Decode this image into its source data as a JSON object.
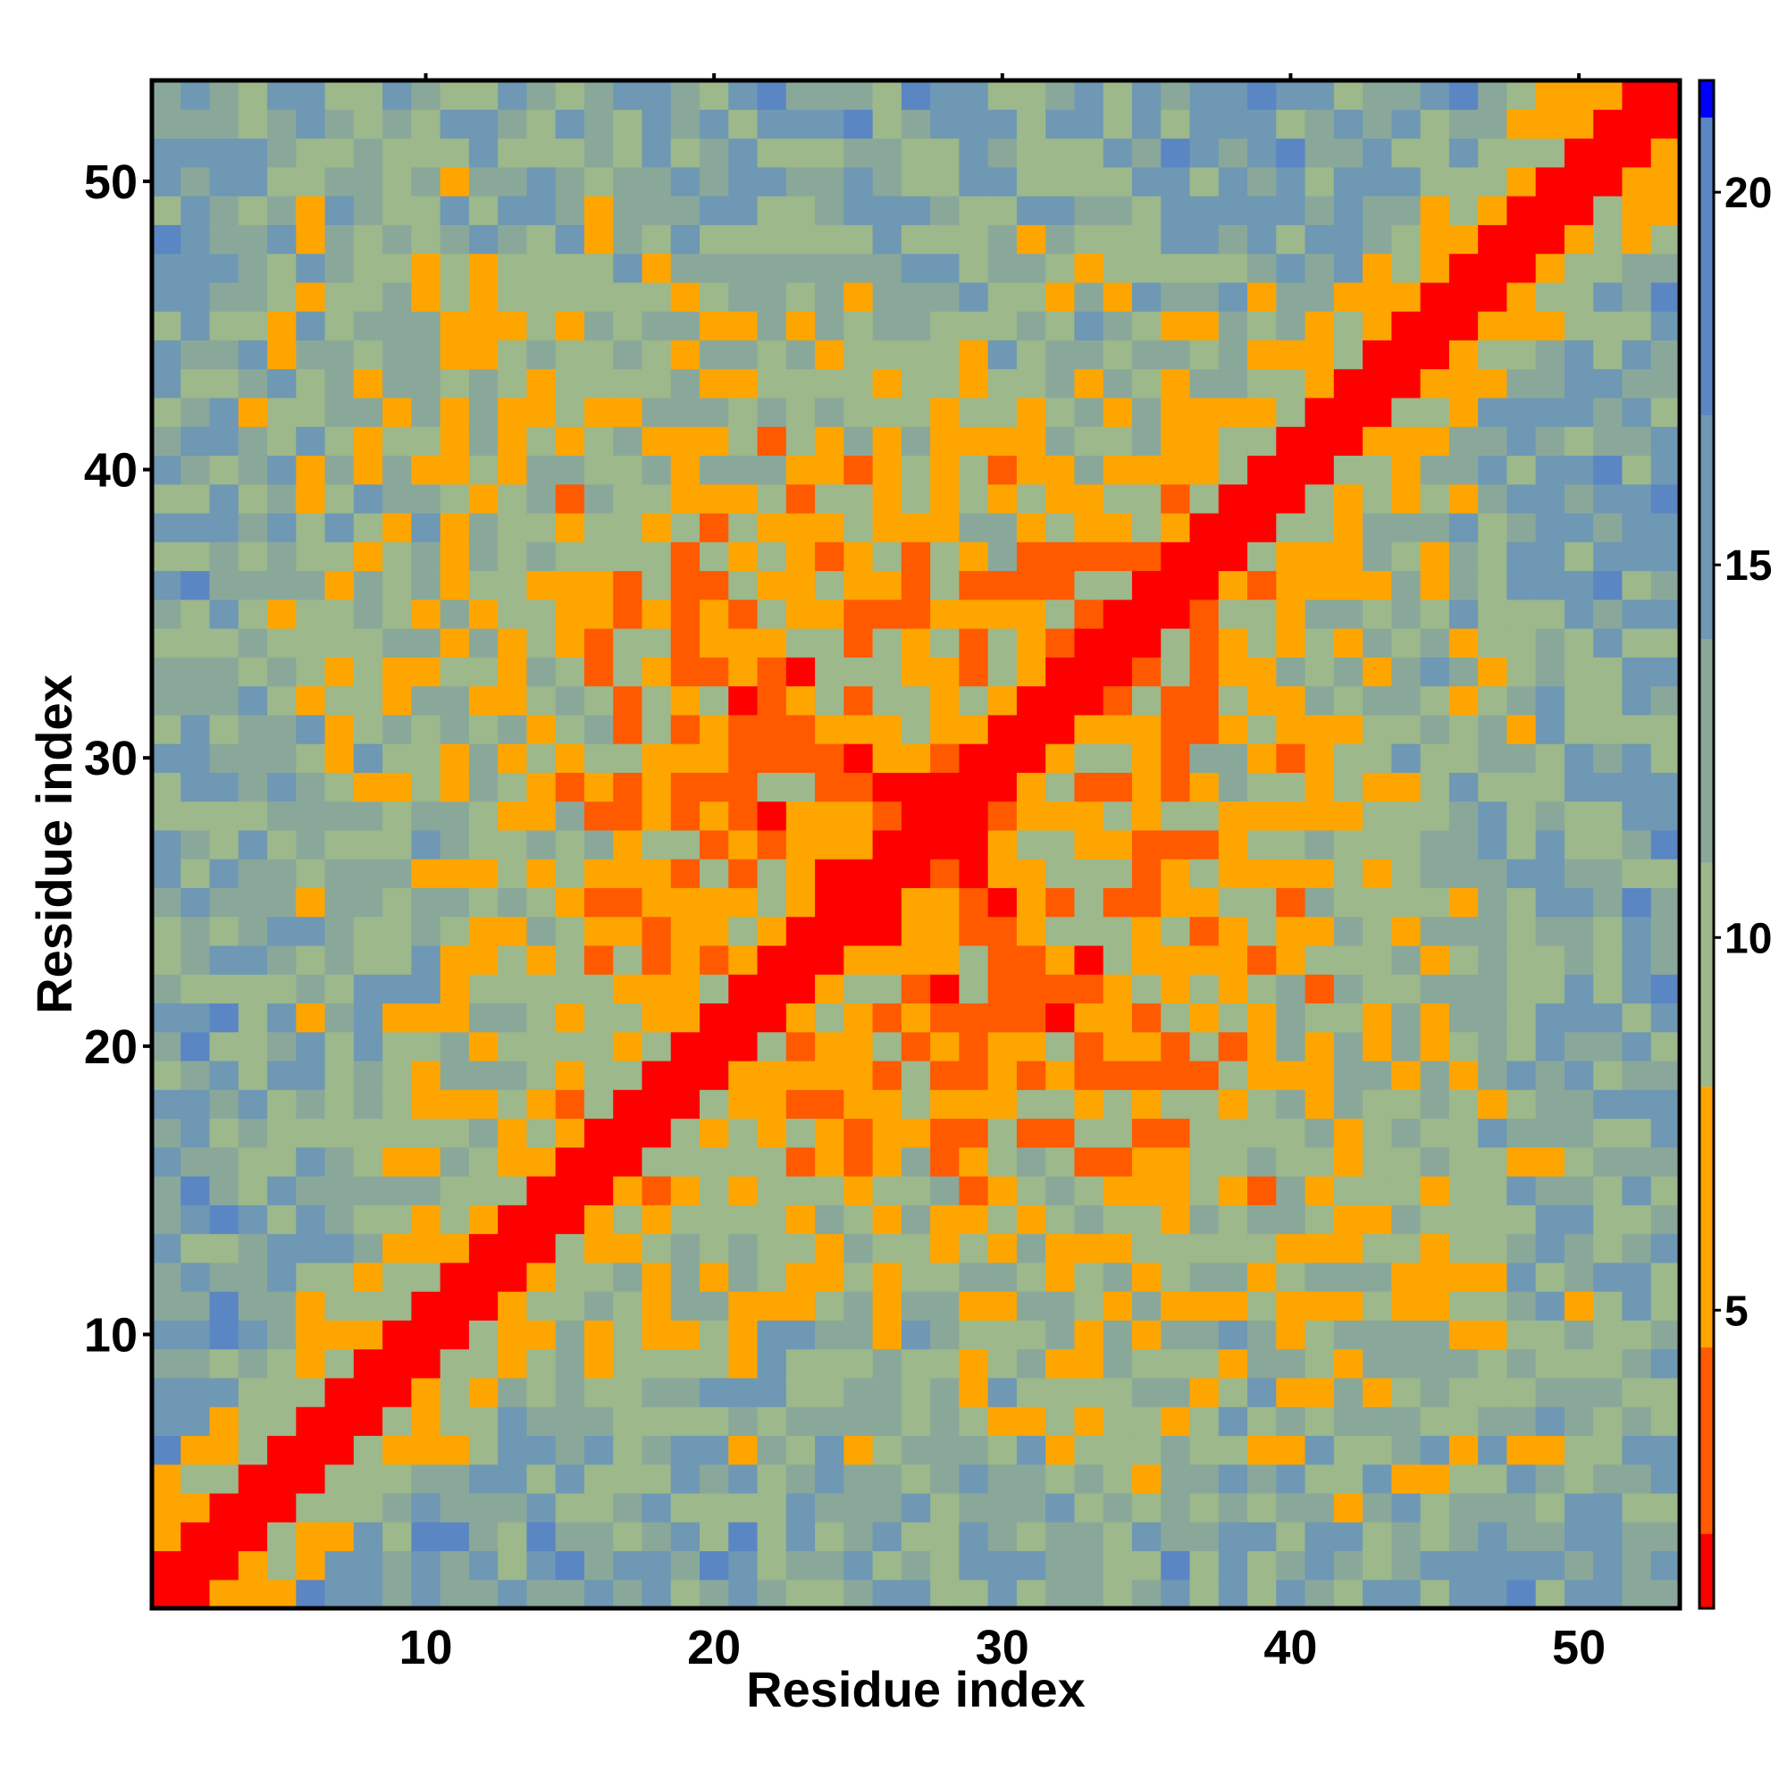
{
  "chart_data": {
    "type": "heatmap",
    "title": "",
    "xlabel": "Residue index",
    "ylabel": "Residue index",
    "n_residues": 53,
    "xlim": [
      1,
      53
    ],
    "ylim": [
      1,
      53
    ],
    "x_ticks": [
      10,
      20,
      30,
      40,
      50
    ],
    "y_ticks": [
      10,
      20,
      30,
      40,
      50
    ],
    "colorbar": {
      "range": [
        1,
        21.5
      ],
      "ticks": [
        5,
        10,
        15,
        20
      ],
      "colors": [
        {
          "max": 2.0,
          "color": "#ff0000"
        },
        {
          "max": 4.5,
          "color": "#ff5a00"
        },
        {
          "max": 8.0,
          "color": "#ffa500"
        },
        {
          "max": 11.0,
          "color": "#9db88a"
        },
        {
          "max": 14.0,
          "color": "#8aa89a"
        },
        {
          "max": 17.0,
          "color": "#6e98b4"
        },
        {
          "max": 21.0,
          "color": "#5b86c4"
        },
        {
          "max": 1000,
          "color": "#0000ff"
        }
      ]
    },
    "description_of_values": "symmetric residue-residue distance matrix; diagonal ~1, saturated (blue) above ~21",
    "values": {
      "generator": "distance",
      "cutoff": 21
    }
  }
}
